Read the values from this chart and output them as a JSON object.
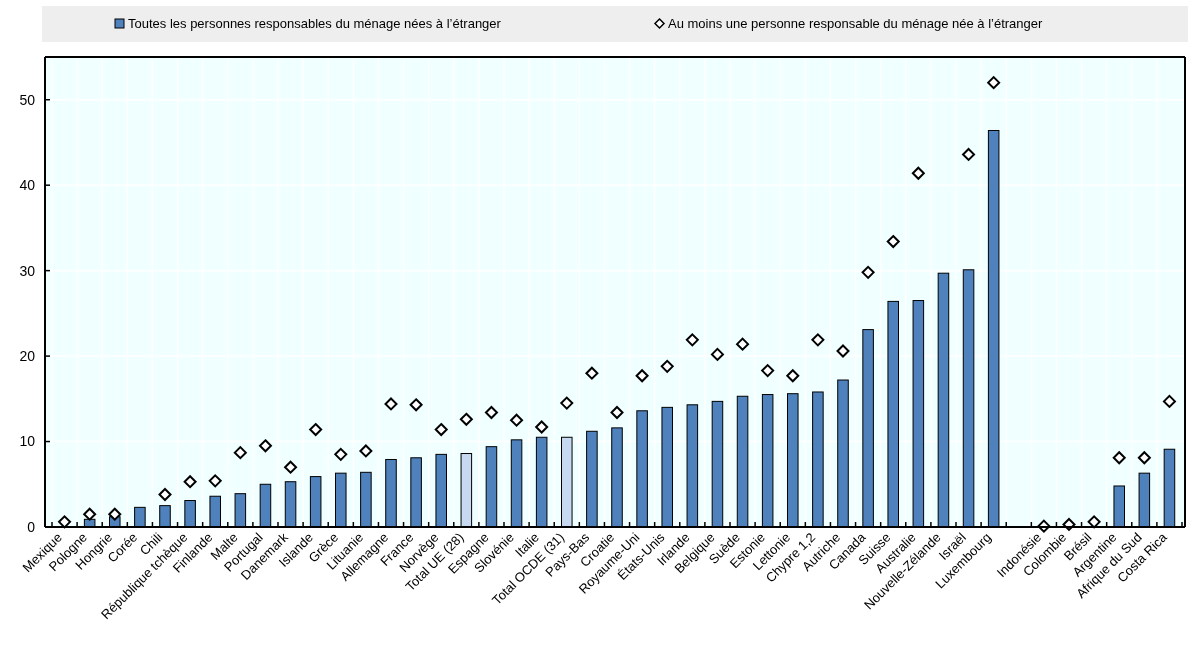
{
  "chart_data": {
    "type": "bar",
    "categories": [
      "Mexique",
      "Pologne",
      "Hongrie",
      "Corée",
      "Chili",
      "République tchèque",
      "Finlande",
      "Malte",
      "Portugal",
      "Danemark",
      "Islande",
      "Grèce",
      "Lituanie",
      "Allemagne",
      "France",
      "Norvège",
      "Total UE (28)",
      "Espagne",
      "Slovénie",
      "Italie",
      "Total OCDE (31)",
      "Pays-Bas",
      "Croatie",
      "Royaume-Uni",
      "États-Unis",
      "Irlande",
      "Belgique",
      "Suède",
      "Estonie",
      "Lettonie",
      "Chypre 1,2",
      "Autriche",
      "Canada",
      "Suisse",
      "Australie",
      "Nouvelle-Zélande",
      "Israël",
      "Luxembourg",
      null,
      "Indonésie",
      "Colombie",
      "Brésil",
      "Argentine",
      "Afrique du Sud",
      "Costa Rica"
    ],
    "series": [
      {
        "name": "Toutes les personnes responsables du ménage nées à l’étranger",
        "color": "#4f81bd",
        "colors": [
          null,
          "#4f81bd",
          "#4f81bd",
          "#4f81bd",
          "#4f81bd",
          "#4f81bd",
          "#4f81bd",
          "#4f81bd",
          "#4f81bd",
          "#4f81bd",
          "#4f81bd",
          "#4f81bd",
          "#4f81bd",
          "#4f81bd",
          "#4f81bd",
          "#4f81bd",
          "#c6d9f1",
          "#4f81bd",
          "#4f81bd",
          "#4f81bd",
          "#c6d9f1",
          "#4f81bd",
          "#4f81bd",
          "#4f81bd",
          "#4f81bd",
          "#4f81bd",
          "#4f81bd",
          "#4f81bd",
          "#4f81bd",
          "#4f81bd",
          "#4f81bd",
          "#4f81bd",
          "#4f81bd",
          "#4f81bd",
          "#4f81bd",
          "#4f81bd",
          "#4f81bd",
          "#4f81bd",
          null,
          null,
          null,
          null,
          "#4f81bd",
          "#4f81bd",
          "#4f81bd"
        ],
        "values": [
          null,
          0.9,
          1.2,
          2.3,
          2.5,
          3.1,
          3.6,
          3.9,
          5.0,
          5.3,
          5.9,
          6.3,
          6.4,
          7.9,
          8.1,
          8.5,
          8.6,
          9.4,
          10.2,
          10.5,
          10.5,
          11.2,
          11.6,
          13.6,
          14.0,
          14.3,
          14.7,
          15.3,
          15.5,
          15.6,
          15.8,
          17.2,
          23.1,
          26.4,
          26.5,
          29.7,
          30.1,
          46.4,
          null,
          null,
          null,
          null,
          4.8,
          6.3,
          9.1
        ]
      },
      {
        "name": "Au moins une personne responsable du ménage née à l’étranger",
        "type": "scatter",
        "marker": "diamond",
        "color": "#ffffff",
        "values": [
          0.6,
          1.5,
          1.5,
          null,
          3.8,
          5.3,
          5.4,
          8.7,
          9.5,
          7.0,
          11.4,
          8.5,
          8.9,
          14.4,
          14.3,
          11.4,
          12.6,
          13.4,
          12.5,
          11.7,
          14.5,
          18.0,
          13.4,
          17.7,
          18.8,
          21.9,
          20.2,
          21.4,
          18.3,
          17.7,
          21.9,
          20.6,
          29.8,
          33.4,
          41.4,
          null,
          43.6,
          52.0,
          null,
          0.1,
          0.3,
          0.6,
          8.1,
          8.1,
          14.7
        ]
      }
    ],
    "ylim": [
      0,
      55
    ],
    "yticks": [
      0,
      10,
      20,
      30,
      40,
      50
    ],
    "grid": true,
    "legend": "top"
  }
}
